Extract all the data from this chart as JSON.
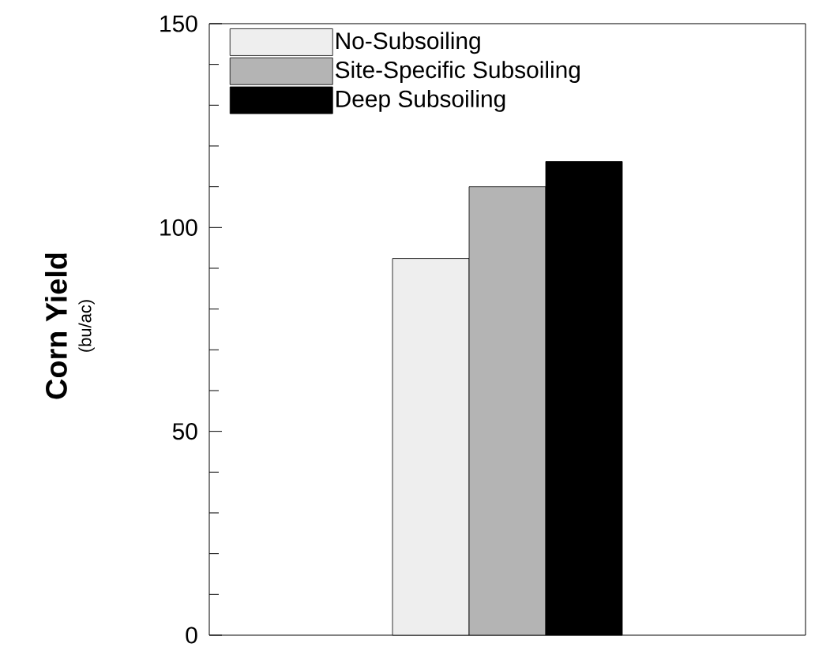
{
  "chart_data": {
    "type": "bar",
    "ylabel": "Corn Yield",
    "annotations": [
      "(bu/ac)"
    ],
    "categories": [
      null
    ],
    "series": [
      {
        "name": "No-Subsoiling",
        "color": "#eeeeee",
        "values": [
          92.4
        ]
      },
      {
        "name": "Site-Specific Subsoiling",
        "color": "#b4b4b4",
        "values": [
          110
        ]
      },
      {
        "name": "Deep Subsoiling",
        "color": "#000000",
        "values": [
          116.2
        ]
      }
    ],
    "ylim": [
      0,
      150
    ],
    "yticks": [
      0,
      {
        "value": 10,
        "label": null
      },
      {
        "value": 20,
        "label": null
      },
      {
        "value": 30,
        "label": null
      },
      {
        "value": 40,
        "label": null
      },
      50,
      {
        "value": 60,
        "label": null
      },
      {
        "value": 70,
        "label": null
      },
      {
        "value": 80,
        "label": null
      },
      {
        "value": 90,
        "label": null
      },
      100,
      {
        "value": 110,
        "label": null
      },
      {
        "value": 120,
        "label": null
      },
      {
        "value": 130,
        "label": null
      },
      {
        "value": 140,
        "label": null
      },
      150
    ],
    "grid": false,
    "legend": "top left"
  }
}
